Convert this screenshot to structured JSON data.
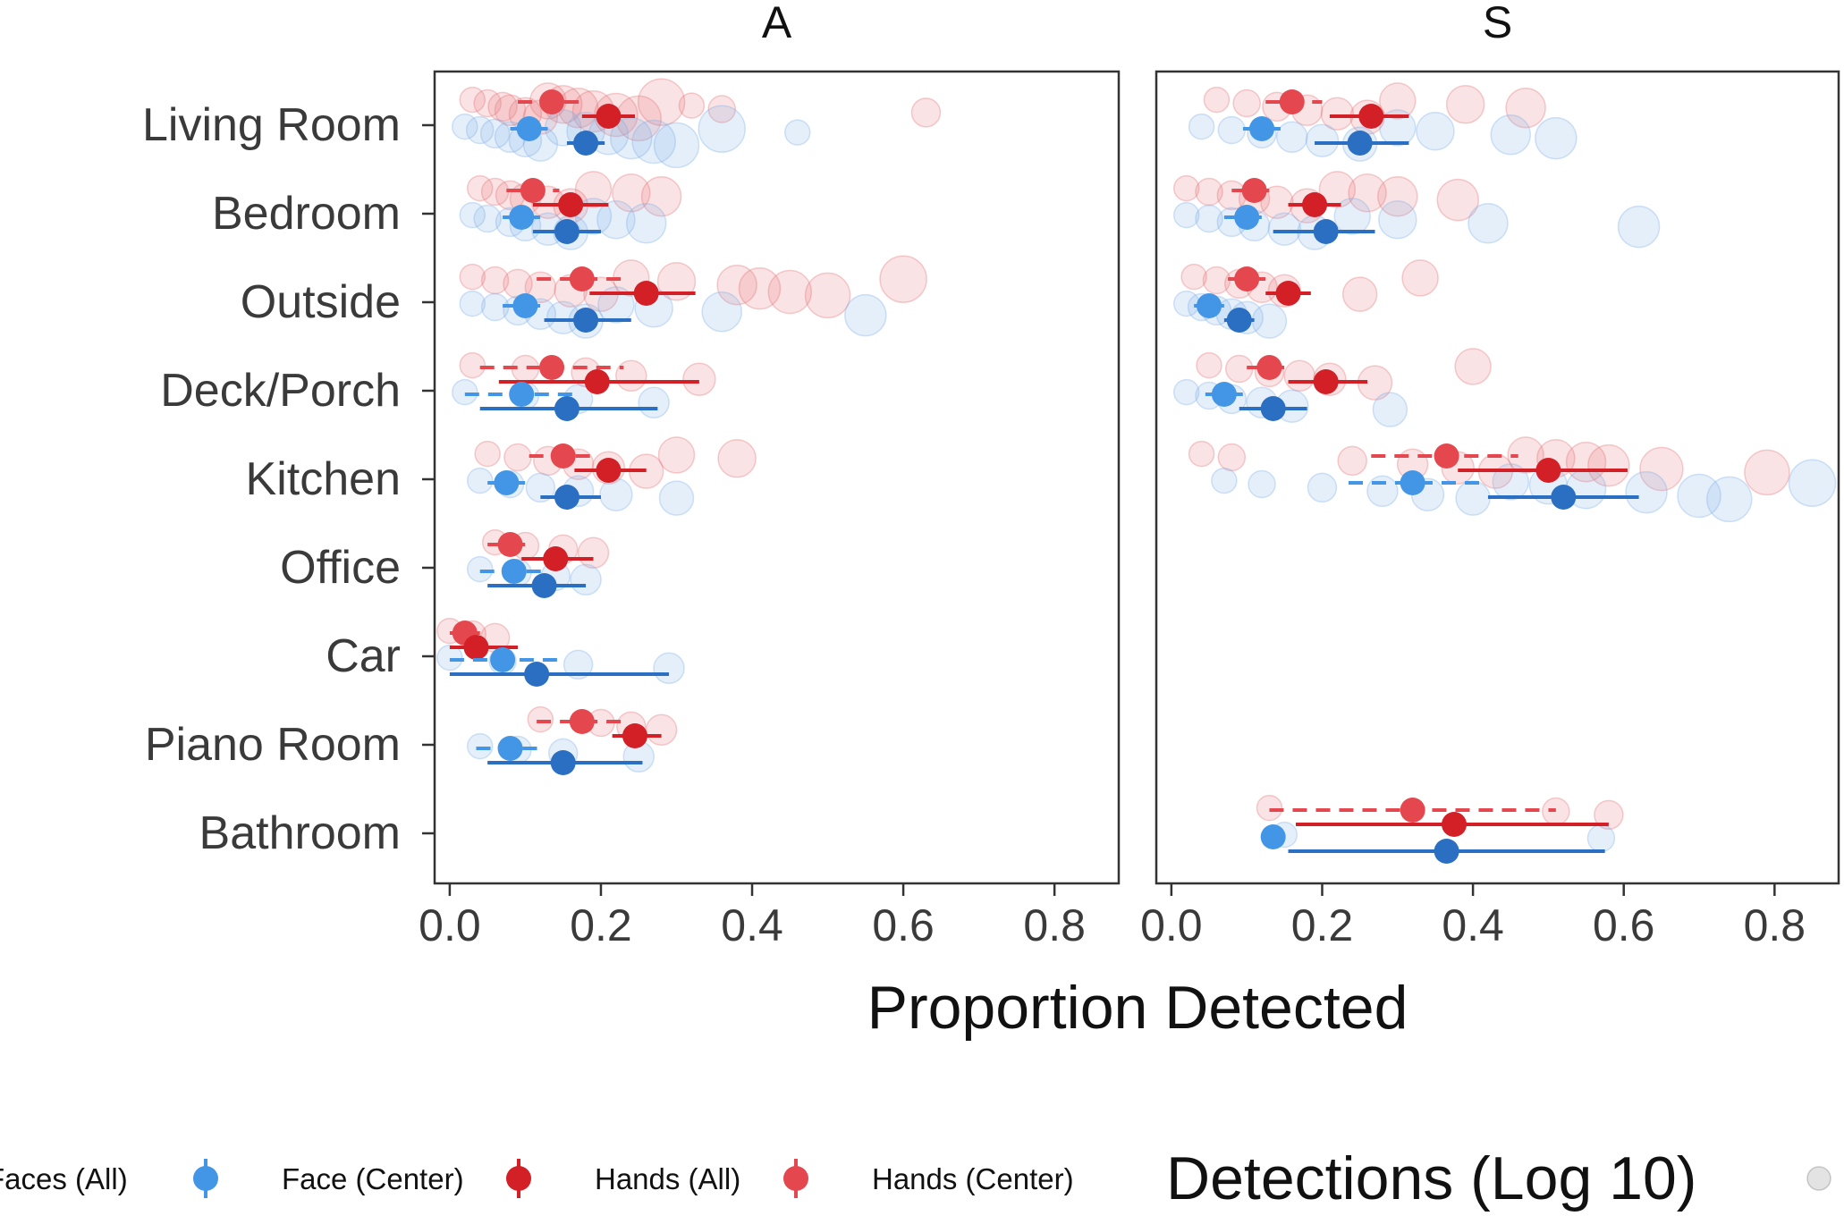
{
  "chart_data": {
    "type": "scatter",
    "xlabel": "Proportion Detected",
    "xlim": [
      -0.02,
      0.885
    ],
    "xticks": [
      0.0,
      0.2,
      0.4,
      0.6,
      0.8
    ],
    "xtick_labels": [
      "0.0",
      "0.2",
      "0.4",
      "0.6",
      "0.8"
    ],
    "categories": [
      "Living Room",
      "Bedroom",
      "Outside",
      "Deck/Porch",
      "Kitchen",
      "Office",
      "Car",
      "Piano Room",
      "Bathroom"
    ],
    "legend": {
      "placement": "bottom",
      "entries": [
        "Faces (All)",
        "Face (Center)",
        "Hands (All)",
        "Hands (Center)"
      ],
      "size_title": "Detections (Log 10)"
    },
    "colors": {
      "Faces (All)": "#2a6fc2",
      "Face (Center)": "#4396e6",
      "Hands (All)": "#d31f26",
      "Hands (Center)": "#e5474e"
    },
    "panels": [
      {
        "title": "A",
        "series": [
          {
            "name": "Hands (Center)",
            "points": [
              {
                "category": "Living Room",
                "mean": 0.135,
                "lo": 0.09,
                "hi": 0.18
              },
              {
                "category": "Bedroom",
                "mean": 0.11,
                "lo": 0.075,
                "hi": 0.145
              },
              {
                "category": "Outside",
                "mean": 0.175,
                "lo": 0.115,
                "hi": 0.23
              },
              {
                "category": "Deck/Porch",
                "mean": 0.135,
                "lo": 0.04,
                "hi": 0.23
              },
              {
                "category": "Kitchen",
                "mean": 0.15,
                "lo": 0.105,
                "hi": 0.195
              },
              {
                "category": "Office",
                "mean": 0.08,
                "lo": 0.05,
                "hi": 0.11
              },
              {
                "category": "Car",
                "mean": 0.02,
                "lo": 0.0,
                "hi": 0.04
              },
              {
                "category": "Piano Room",
                "mean": 0.175,
                "lo": 0.115,
                "hi": 0.235
              }
            ]
          },
          {
            "name": "Hands (All)",
            "points": [
              {
                "category": "Living Room",
                "mean": 0.21,
                "lo": 0.175,
                "hi": 0.245
              },
              {
                "category": "Bedroom",
                "mean": 0.16,
                "lo": 0.11,
                "hi": 0.21
              },
              {
                "category": "Outside",
                "mean": 0.26,
                "lo": 0.185,
                "hi": 0.325
              },
              {
                "category": "Deck/Porch",
                "mean": 0.195,
                "lo": 0.065,
                "hi": 0.33
              },
              {
                "category": "Kitchen",
                "mean": 0.21,
                "lo": 0.165,
                "hi": 0.26
              },
              {
                "category": "Office",
                "mean": 0.14,
                "lo": 0.095,
                "hi": 0.19
              },
              {
                "category": "Car",
                "mean": 0.035,
                "lo": 0.0,
                "hi": 0.09
              },
              {
                "category": "Piano Room",
                "mean": 0.245,
                "lo": 0.215,
                "hi": 0.28
              }
            ]
          },
          {
            "name": "Face (Center)",
            "points": [
              {
                "category": "Living Room",
                "mean": 0.105,
                "lo": 0.08,
                "hi": 0.13
              },
              {
                "category": "Bedroom",
                "mean": 0.095,
                "lo": 0.07,
                "hi": 0.12
              },
              {
                "category": "Outside",
                "mean": 0.1,
                "lo": 0.07,
                "hi": 0.13
              },
              {
                "category": "Deck/Porch",
                "mean": 0.095,
                "lo": 0.02,
                "hi": 0.17
              },
              {
                "category": "Kitchen",
                "mean": 0.075,
                "lo": 0.05,
                "hi": 0.1
              },
              {
                "category": "Office",
                "mean": 0.085,
                "lo": 0.04,
                "hi": 0.125
              },
              {
                "category": "Car",
                "mean": 0.07,
                "lo": 0.0,
                "hi": 0.15
              },
              {
                "category": "Piano Room",
                "mean": 0.08,
                "lo": 0.035,
                "hi": 0.125
              }
            ]
          },
          {
            "name": "Faces (All)",
            "points": [
              {
                "category": "Living Room",
                "mean": 0.18,
                "lo": 0.155,
                "hi": 0.205
              },
              {
                "category": "Bedroom",
                "mean": 0.155,
                "lo": 0.11,
                "hi": 0.2
              },
              {
                "category": "Outside",
                "mean": 0.18,
                "lo": 0.125,
                "hi": 0.24
              },
              {
                "category": "Deck/Porch",
                "mean": 0.155,
                "lo": 0.04,
                "hi": 0.275
              },
              {
                "category": "Kitchen",
                "mean": 0.155,
                "lo": 0.12,
                "hi": 0.2
              },
              {
                "category": "Office",
                "mean": 0.125,
                "lo": 0.05,
                "hi": 0.18
              },
              {
                "category": "Car",
                "mean": 0.115,
                "lo": 0.0,
                "hi": 0.29
              },
              {
                "category": "Piano Room",
                "mean": 0.15,
                "lo": 0.05,
                "hi": 0.255
              }
            ]
          }
        ],
        "raw_points": [
          {
            "category": "Living Room",
            "group": "hands",
            "x": [
              0.03,
              0.05,
              0.07,
              0.08,
              0.1,
              0.12,
              0.13,
              0.15,
              0.17,
              0.19,
              0.22,
              0.25,
              0.28,
              0.32,
              0.36,
              0.63
            ]
          },
          {
            "category": "Living Room",
            "group": "faces",
            "x": [
              0.02,
              0.04,
              0.06,
              0.08,
              0.1,
              0.12,
              0.15,
              0.18,
              0.21,
              0.24,
              0.27,
              0.3,
              0.36,
              0.46
            ]
          },
          {
            "category": "Bedroom",
            "group": "hands",
            "x": [
              0.04,
              0.06,
              0.08,
              0.1,
              0.13,
              0.16,
              0.19,
              0.24,
              0.28
            ]
          },
          {
            "category": "Bedroom",
            "group": "faces",
            "x": [
              0.03,
              0.05,
              0.08,
              0.1,
              0.13,
              0.16,
              0.19,
              0.22,
              0.26
            ]
          },
          {
            "category": "Outside",
            "group": "hands",
            "x": [
              0.03,
              0.06,
              0.09,
              0.12,
              0.16,
              0.2,
              0.24,
              0.3,
              0.38,
              0.41,
              0.45,
              0.5,
              0.6
            ]
          },
          {
            "category": "Outside",
            "group": "faces",
            "x": [
              0.03,
              0.06,
              0.09,
              0.12,
              0.15,
              0.18,
              0.22,
              0.27,
              0.36,
              0.55
            ]
          },
          {
            "category": "Deck/Porch",
            "group": "hands",
            "x": [
              0.03,
              0.1,
              0.18,
              0.24,
              0.33
            ]
          },
          {
            "category": "Deck/Porch",
            "group": "faces",
            "x": [
              0.02,
              0.1,
              0.17,
              0.27
            ]
          },
          {
            "category": "Kitchen",
            "group": "hands",
            "x": [
              0.05,
              0.09,
              0.13,
              0.17,
              0.21,
              0.26,
              0.3,
              0.38
            ]
          },
          {
            "category": "Kitchen",
            "group": "faces",
            "x": [
              0.04,
              0.08,
              0.12,
              0.17,
              0.22,
              0.3
            ]
          },
          {
            "category": "Office",
            "group": "hands",
            "x": [
              0.06,
              0.1,
              0.15,
              0.19
            ]
          },
          {
            "category": "Office",
            "group": "faces",
            "x": [
              0.04,
              0.09,
              0.14,
              0.18
            ]
          },
          {
            "category": "Car",
            "group": "hands",
            "x": [
              0.0,
              0.03,
              0.06
            ]
          },
          {
            "category": "Car",
            "group": "faces",
            "x": [
              0.0,
              0.07,
              0.17,
              0.29
            ]
          },
          {
            "category": "Piano Room",
            "group": "hands",
            "x": [
              0.12,
              0.2,
              0.24,
              0.28
            ]
          },
          {
            "category": "Piano Room",
            "group": "faces",
            "x": [
              0.04,
              0.09,
              0.15,
              0.25
            ]
          }
        ]
      },
      {
        "title": "S",
        "series": [
          {
            "name": "Hands (Center)",
            "points": [
              {
                "category": "Living Room",
                "mean": 0.16,
                "lo": 0.125,
                "hi": 0.2
              },
              {
                "category": "Bedroom",
                "mean": 0.11,
                "lo": 0.08,
                "hi": 0.14
              },
              {
                "category": "Outside",
                "mean": 0.1,
                "lo": 0.075,
                "hi": 0.125
              },
              {
                "category": "Deck/Porch",
                "mean": 0.13,
                "lo": 0.1,
                "hi": 0.16
              },
              {
                "category": "Kitchen",
                "mean": 0.365,
                "lo": 0.265,
                "hi": 0.46
              },
              {
                "category": "Bathroom",
                "mean": 0.32,
                "lo": 0.13,
                "hi": 0.51
              }
            ]
          },
          {
            "name": "Hands (All)",
            "points": [
              {
                "category": "Living Room",
                "mean": 0.265,
                "lo": 0.21,
                "hi": 0.315
              },
              {
                "category": "Bedroom",
                "mean": 0.19,
                "lo": 0.155,
                "hi": 0.225
              },
              {
                "category": "Outside",
                "mean": 0.155,
                "lo": 0.125,
                "hi": 0.185
              },
              {
                "category": "Deck/Porch",
                "mean": 0.205,
                "lo": 0.155,
                "hi": 0.26
              },
              {
                "category": "Kitchen",
                "mean": 0.5,
                "lo": 0.38,
                "hi": 0.605
              },
              {
                "category": "Bathroom",
                "mean": 0.375,
                "lo": 0.165,
                "hi": 0.58
              }
            ]
          },
          {
            "name": "Face (Center)",
            "points": [
              {
                "category": "Living Room",
                "mean": 0.12,
                "lo": 0.095,
                "hi": 0.15
              },
              {
                "category": "Bedroom",
                "mean": 0.1,
                "lo": 0.07,
                "hi": 0.13
              },
              {
                "category": "Outside",
                "mean": 0.05,
                "lo": 0.03,
                "hi": 0.07
              },
              {
                "category": "Deck/Porch",
                "mean": 0.07,
                "lo": 0.045,
                "hi": 0.095
              },
              {
                "category": "Kitchen",
                "mean": 0.32,
                "lo": 0.235,
                "hi": 0.41
              },
              {
                "category": "Bathroom",
                "mean": 0.135,
                "lo": 0.13,
                "hi": 0.14
              }
            ]
          },
          {
            "name": "Faces (All)",
            "points": [
              {
                "category": "Living Room",
                "mean": 0.25,
                "lo": 0.19,
                "hi": 0.315
              },
              {
                "category": "Bedroom",
                "mean": 0.205,
                "lo": 0.135,
                "hi": 0.27
              },
              {
                "category": "Outside",
                "mean": 0.09,
                "lo": 0.07,
                "hi": 0.11
              },
              {
                "category": "Deck/Porch",
                "mean": 0.135,
                "lo": 0.09,
                "hi": 0.18
              },
              {
                "category": "Kitchen",
                "mean": 0.52,
                "lo": 0.42,
                "hi": 0.62
              },
              {
                "category": "Bathroom",
                "mean": 0.365,
                "lo": 0.155,
                "hi": 0.575
              }
            ]
          }
        ],
        "raw_points": [
          {
            "category": "Living Room",
            "group": "hands",
            "x": [
              0.06,
              0.1,
              0.14,
              0.18,
              0.22,
              0.26,
              0.3,
              0.39,
              0.47
            ]
          },
          {
            "category": "Living Room",
            "group": "faces",
            "x": [
              0.04,
              0.08,
              0.12,
              0.16,
              0.2,
              0.25,
              0.3,
              0.35,
              0.45,
              0.51
            ]
          },
          {
            "category": "Bedroom",
            "group": "hands",
            "x": [
              0.02,
              0.05,
              0.08,
              0.11,
              0.14,
              0.18,
              0.22,
              0.26,
              0.3,
              0.38
            ]
          },
          {
            "category": "Bedroom",
            "group": "faces",
            "x": [
              0.02,
              0.05,
              0.08,
              0.11,
              0.15,
              0.19,
              0.24,
              0.3,
              0.42,
              0.62
            ]
          },
          {
            "category": "Outside",
            "group": "hands",
            "x": [
              0.03,
              0.06,
              0.09,
              0.12,
              0.15,
              0.25,
              0.33
            ]
          },
          {
            "category": "Outside",
            "group": "faces",
            "x": [
              0.02,
              0.04,
              0.06,
              0.08,
              0.1,
              0.13
            ]
          },
          {
            "category": "Deck/Porch",
            "group": "hands",
            "x": [
              0.05,
              0.09,
              0.13,
              0.17,
              0.21,
              0.27,
              0.4
            ]
          },
          {
            "category": "Deck/Porch",
            "group": "faces",
            "x": [
              0.02,
              0.05,
              0.08,
              0.12,
              0.16,
              0.29
            ]
          },
          {
            "category": "Kitchen",
            "group": "hands",
            "x": [
              0.04,
              0.08,
              0.24,
              0.32,
              0.38,
              0.43,
              0.47,
              0.51,
              0.55,
              0.58,
              0.65,
              0.79
            ]
          },
          {
            "category": "Kitchen",
            "group": "faces",
            "x": [
              0.07,
              0.12,
              0.2,
              0.28,
              0.34,
              0.4,
              0.45,
              0.5,
              0.55,
              0.63,
              0.7,
              0.74,
              0.85
            ]
          },
          {
            "category": "Bathroom",
            "group": "hands",
            "x": [
              0.13,
              0.51,
              0.58
            ]
          },
          {
            "category": "Bathroom",
            "group": "faces",
            "x": [
              0.15,
              0.57
            ]
          }
        ]
      }
    ]
  }
}
